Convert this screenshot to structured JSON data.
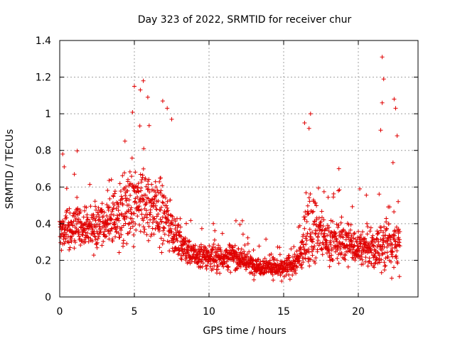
{
  "chart_data": {
    "type": "scatter",
    "title": "Day 323 of 2022, SRMTID for receiver chur",
    "xlabel": "GPS time / hours",
    "ylabel": "SRMTID / TECUs",
    "xlim": [
      0,
      24
    ],
    "ylim": [
      0,
      1.4
    ],
    "xticks": [
      0,
      5,
      10,
      15,
      20
    ],
    "yticks": [
      0,
      0.2,
      0.4,
      0.6,
      0.8,
      1,
      1.2,
      1.4
    ],
    "xtick_labels": [
      "0",
      "5",
      "10",
      "15",
      "20"
    ],
    "ytick_labels": [
      "0",
      "0.2",
      "0.4",
      "0.6",
      "0.8",
      "1",
      "1.2",
      "1.4"
    ],
    "grid": true,
    "marker": "+",
    "color": "#e00000",
    "x_range_data": [
      0,
      22.8
    ],
    "profile_hours": [
      0,
      1,
      2,
      3,
      4,
      5,
      6,
      7,
      8,
      9,
      10,
      11,
      12,
      13,
      14,
      15,
      16,
      16.8,
      18,
      19,
      20,
      21,
      22,
      22.8
    ],
    "profile_median": [
      0.35,
      0.38,
      0.38,
      0.4,
      0.45,
      0.5,
      0.5,
      0.45,
      0.3,
      0.22,
      0.22,
      0.22,
      0.22,
      0.17,
      0.17,
      0.15,
      0.2,
      0.4,
      0.3,
      0.3,
      0.28,
      0.25,
      0.3,
      0.3
    ],
    "profile_spread": [
      0.12,
      0.12,
      0.1,
      0.12,
      0.18,
      0.22,
      0.2,
      0.18,
      0.08,
      0.07,
      0.07,
      0.07,
      0.07,
      0.05,
      0.05,
      0.05,
      0.08,
      0.2,
      0.1,
      0.12,
      0.1,
      0.1,
      0.18,
      0.15
    ],
    "notable_points": [
      {
        "x": 0.2,
        "y": 0.78
      },
      {
        "x": 0.3,
        "y": 0.71
      },
      {
        "x": 5.0,
        "y": 1.15
      },
      {
        "x": 5.4,
        "y": 1.13
      },
      {
        "x": 5.6,
        "y": 1.18
      },
      {
        "x": 5.9,
        "y": 1.09
      },
      {
        "x": 6.9,
        "y": 1.07
      },
      {
        "x": 7.2,
        "y": 1.03
      },
      {
        "x": 7.5,
        "y": 0.97
      },
      {
        "x": 16.4,
        "y": 0.95
      },
      {
        "x": 16.8,
        "y": 1.0
      },
      {
        "x": 16.7,
        "y": 0.92
      },
      {
        "x": 21.6,
        "y": 1.31
      },
      {
        "x": 21.7,
        "y": 1.19
      },
      {
        "x": 21.6,
        "y": 1.06
      },
      {
        "x": 21.5,
        "y": 0.91
      },
      {
        "x": 22.4,
        "y": 1.08
      },
      {
        "x": 22.5,
        "y": 1.03
      },
      {
        "x": 22.6,
        "y": 0.88
      },
      {
        "x": 20.1,
        "y": 0.59
      },
      {
        "x": 18.7,
        "y": 0.7
      }
    ]
  }
}
